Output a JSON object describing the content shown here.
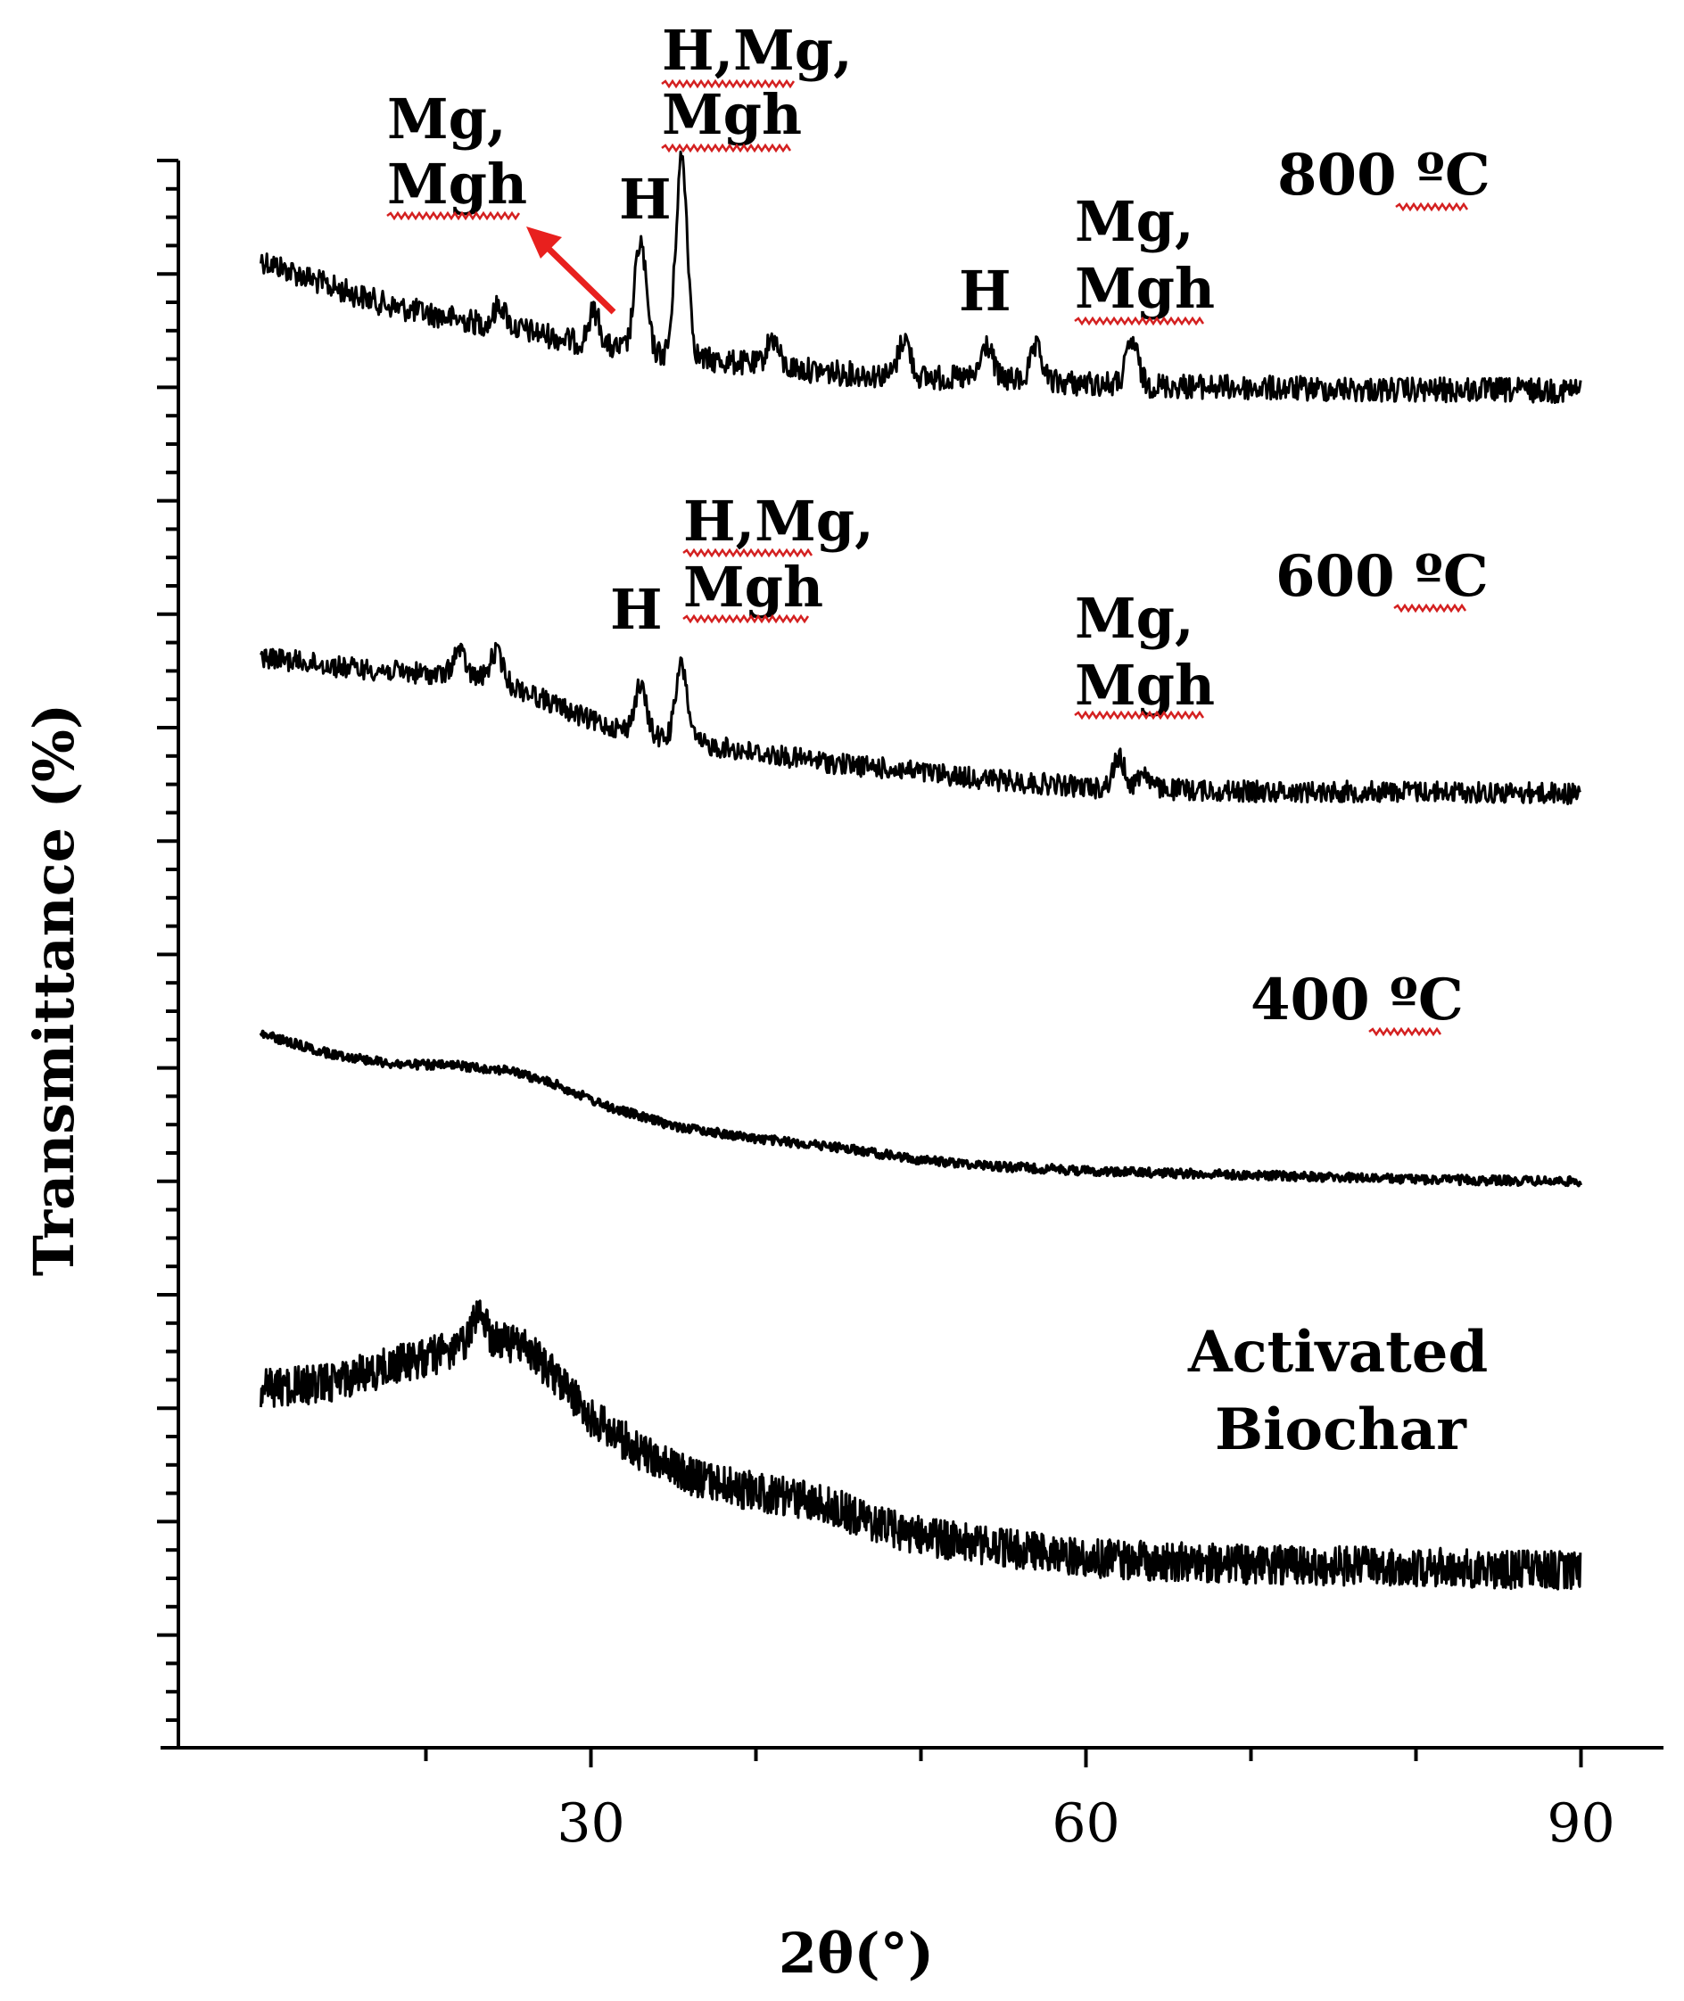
{
  "chart_data": {
    "type": "line",
    "xlabel": "2θ(°)",
    "ylabel": "Transmittance (%)",
    "xlim": [
      5,
      95
    ],
    "x_ticks": [
      30,
      60,
      90
    ],
    "x_tick_labels": [
      "30",
      "60",
      "90"
    ],
    "x_range_data": [
      10,
      90
    ],
    "stacked_offsets": true,
    "grid": false,
    "series": [
      {
        "name": "800 ºC",
        "profile": [
          [
            10,
            6.2
          ],
          [
            14,
            5.0
          ],
          [
            18,
            4.0
          ],
          [
            22,
            3.4
          ],
          [
            26,
            2.9
          ],
          [
            30,
            2.2
          ],
          [
            33,
            1.9
          ],
          [
            36,
            1.6
          ],
          [
            40,
            1.3
          ],
          [
            45,
            0.9
          ],
          [
            50,
            0.7
          ],
          [
            55,
            0.6
          ],
          [
            60,
            0.4
          ],
          [
            70,
            0.2
          ],
          [
            80,
            0.1
          ],
          [
            90,
            0.1
          ]
        ],
        "peaks": [
          [
            24.5,
            1.0
          ],
          [
            30.2,
            1.6
          ],
          [
            33.0,
            5.1
          ],
          [
            35.5,
            9.3
          ],
          [
            41.0,
            1.3
          ],
          [
            49.0,
            1.8
          ],
          [
            54.0,
            1.6
          ],
          [
            57.0,
            1.5
          ],
          [
            62.8,
            2.0
          ]
        ]
      },
      {
        "name": "600 ºC",
        "profile": [
          [
            10,
            6.4
          ],
          [
            15,
            5.9
          ],
          [
            20,
            5.6
          ],
          [
            24,
            5.4
          ],
          [
            26,
            4.8
          ],
          [
            30,
            3.4
          ],
          [
            33,
            2.8
          ],
          [
            36,
            2.4
          ],
          [
            40,
            1.9
          ],
          [
            45,
            1.4
          ],
          [
            50,
            1.0
          ],
          [
            55,
            0.6
          ],
          [
            60,
            0.3
          ],
          [
            70,
            0.1
          ],
          [
            80,
            0.1
          ],
          [
            90,
            0.0
          ]
        ],
        "peaks": [
          [
            22.0,
            1.2
          ],
          [
            24.3,
            1.3
          ],
          [
            33.0,
            2.2
          ],
          [
            35.5,
            3.5
          ],
          [
            62.0,
            1.4
          ],
          [
            63.5,
            0.8
          ]
        ]
      },
      {
        "name": "400 ºC",
        "profile": [
          [
            10,
            6.9
          ],
          [
            14,
            6.0
          ],
          [
            18,
            5.5
          ],
          [
            22,
            5.4
          ],
          [
            25,
            5.2
          ],
          [
            28,
            4.5
          ],
          [
            31,
            3.5
          ],
          [
            35,
            2.6
          ],
          [
            40,
            2.0
          ],
          [
            45,
            1.6
          ],
          [
            50,
            1.0
          ],
          [
            55,
            0.7
          ],
          [
            60,
            0.5
          ],
          [
            70,
            0.3
          ],
          [
            80,
            0.1
          ],
          [
            90,
            0.0
          ]
        ],
        "peaks": []
      },
      {
        "name": "Activated Biochar",
        "profile": [
          [
            10,
            8.5
          ],
          [
            14,
            8.8
          ],
          [
            18,
            9.6
          ],
          [
            21,
            10.2
          ],
          [
            24,
            10.8
          ],
          [
            26,
            10.5
          ],
          [
            28,
            9.0
          ],
          [
            30,
            7.2
          ],
          [
            33,
            5.6
          ],
          [
            36,
            4.4
          ],
          [
            40,
            3.7
          ],
          [
            44,
            3.2
          ],
          [
            48,
            2.0
          ],
          [
            52,
            1.4
          ],
          [
            56,
            1.0
          ],
          [
            60,
            0.6
          ],
          [
            70,
            0.3
          ],
          [
            80,
            0.2
          ],
          [
            90,
            0.0
          ]
        ],
        "peaks": [
          [
            23.2,
            1.6
          ]
        ]
      }
    ],
    "annotations": [
      {
        "text": "800 ºC"
      },
      {
        "text": "600 ºC"
      },
      {
        "text": "400 ºC"
      },
      {
        "text": "Activated"
      },
      {
        "text": "Biochar"
      },
      {
        "text": "Mg,"
      },
      {
        "text": "Mgh"
      },
      {
        "text": "H"
      },
      {
        "text": "H,Mg,"
      },
      {
        "text": "Mgh"
      },
      {
        "text": "H"
      },
      {
        "text": "Mg,"
      },
      {
        "text": "Mgh"
      },
      {
        "text": "H"
      },
      {
        "text": "H,Mg,"
      },
      {
        "text": "Mgh"
      },
      {
        "text": "Mg,"
      },
      {
        "text": "Mgh"
      }
    ],
    "arrow_color": "#e8201e",
    "underline_color": "#d42020",
    "line_color": "#000000"
  }
}
